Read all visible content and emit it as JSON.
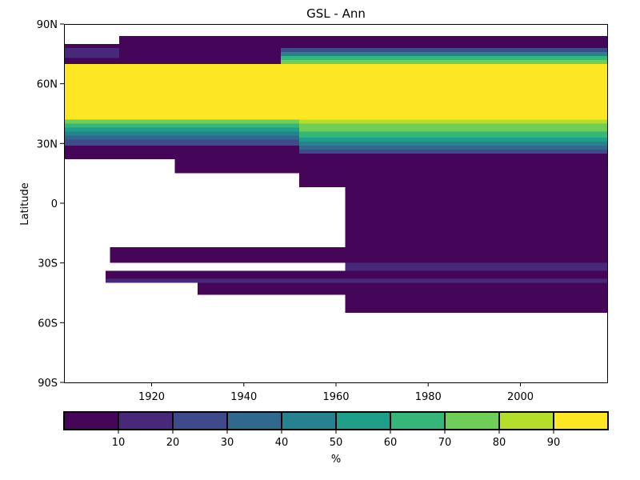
{
  "chart_data": {
    "type": "heatmap",
    "title": "GSL - Ann",
    "xlabel": "",
    "ylabel": "Latitude",
    "xlim": [
      1901,
      2019
    ],
    "ylim": [
      -90,
      90
    ],
    "x_ticks": [
      {
        "value": 1920,
        "label": "1920"
      },
      {
        "value": 1940,
        "label": "1940"
      },
      {
        "value": 1960,
        "label": "1960"
      },
      {
        "value": 1980,
        "label": "1980"
      },
      {
        "value": 2000,
        "label": "2000"
      }
    ],
    "y_ticks": [
      {
        "value": 90,
        "label": "90N"
      },
      {
        "value": 60,
        "label": "60N"
      },
      {
        "value": 30,
        "label": "30N"
      },
      {
        "value": 0,
        "label": "0"
      },
      {
        "value": -30,
        "label": "30S"
      },
      {
        "value": -60,
        "label": "60S"
      },
      {
        "value": -90,
        "label": "90S"
      }
    ],
    "colorbar": {
      "label": "%",
      "min": 0,
      "max": 100,
      "boundaries": [
        0,
        10,
        20,
        30,
        40,
        50,
        60,
        70,
        80,
        90,
        100
      ],
      "colors": [
        "#450559",
        "#482878",
        "#3e4a89",
        "#31688e",
        "#26828e",
        "#1f9e89",
        "#35b779",
        "#6ece58",
        "#b5de2b",
        "#fde725"
      ],
      "tick_labels": [
        "10",
        "20",
        "30",
        "40",
        "50",
        "60",
        "70",
        "80",
        "90"
      ]
    },
    "regions": [
      {
        "x": [
          1901,
          2019
        ],
        "lat": [
          70,
          80
        ],
        "value": 5
      },
      {
        "x": [
          1901,
          1913
        ],
        "lat": [
          73,
          78
        ],
        "value": 15
      },
      {
        "x": [
          1913,
          1930
        ],
        "lat": [
          80,
          84
        ],
        "value": 5
      },
      {
        "x": [
          1930,
          2019
        ],
        "lat": [
          80,
          84
        ],
        "value": 5
      },
      {
        "x": [
          1948,
          2019
        ],
        "lat": [
          76,
          78
        ],
        "value": 25
      },
      {
        "x": [
          1948,
          2019
        ],
        "lat": [
          74,
          76
        ],
        "value": 45
      },
      {
        "x": [
          1948,
          2019
        ],
        "lat": [
          72,
          74
        ],
        "value": 65
      },
      {
        "x": [
          1948,
          2019
        ],
        "lat": [
          70,
          72
        ],
        "value": 75
      },
      {
        "x": [
          1901,
          2019
        ],
        "lat": [
          42,
          70
        ],
        "value": 95
      },
      {
        "x": [
          1901,
          1952
        ],
        "lat": [
          40,
          42
        ],
        "value": 75
      },
      {
        "x": [
          1901,
          1952
        ],
        "lat": [
          38,
          40
        ],
        "value": 65
      },
      {
        "x": [
          1901,
          1952
        ],
        "lat": [
          36,
          38
        ],
        "value": 55
      },
      {
        "x": [
          1901,
          1952
        ],
        "lat": [
          34,
          36
        ],
        "value": 45
      },
      {
        "x": [
          1901,
          1952
        ],
        "lat": [
          32,
          34
        ],
        "value": 35
      },
      {
        "x": [
          1901,
          1952
        ],
        "lat": [
          29,
          32
        ],
        "value": 25
      },
      {
        "x": [
          1901,
          1952
        ],
        "lat": [
          22,
          29
        ],
        "value": 5
      },
      {
        "x": [
          1952,
          2019
        ],
        "lat": [
          40,
          42
        ],
        "value": 85
      },
      {
        "x": [
          1952,
          2019
        ],
        "lat": [
          36,
          40
        ],
        "value": 75
      },
      {
        "x": [
          1952,
          2019
        ],
        "lat": [
          33,
          36
        ],
        "value": 65
      },
      {
        "x": [
          1952,
          2019
        ],
        "lat": [
          31,
          33
        ],
        "value": 55
      },
      {
        "x": [
          1952,
          2019
        ],
        "lat": [
          29,
          31
        ],
        "value": 45
      },
      {
        "x": [
          1952,
          2019
        ],
        "lat": [
          27,
          29
        ],
        "value": 35
      },
      {
        "x": [
          1952,
          2019
        ],
        "lat": [
          25,
          27
        ],
        "value": 25
      },
      {
        "x": [
          1952,
          2019
        ],
        "lat": [
          22,
          25
        ],
        "value": 5
      },
      {
        "x": [
          1925,
          2019
        ],
        "lat": [
          15,
          22
        ],
        "value": 5
      },
      {
        "x": [
          1952,
          2019
        ],
        "lat": [
          8,
          15
        ],
        "value": 5
      },
      {
        "x": [
          1962,
          2019
        ],
        "lat": [
          -13,
          8
        ],
        "value": 5
      },
      {
        "x": [
          1962,
          2019
        ],
        "lat": [
          -22,
          -13
        ],
        "value": 5
      },
      {
        "x": [
          1911,
          2019
        ],
        "lat": [
          -30,
          -22
        ],
        "value": 5
      },
      {
        "x": [
          1962,
          2019
        ],
        "lat": [
          -34,
          -30
        ],
        "value": 15
      },
      {
        "x": [
          1910,
          2019
        ],
        "lat": [
          -38,
          -34
        ],
        "value": 5
      },
      {
        "x": [
          1910,
          2019
        ],
        "lat": [
          -40,
          -38
        ],
        "value": 15
      },
      {
        "x": [
          1930,
          2019
        ],
        "lat": [
          -46,
          -40
        ],
        "value": 5
      },
      {
        "x": [
          1962,
          2019
        ],
        "lat": [
          -55,
          -46
        ],
        "value": 5
      }
    ]
  }
}
